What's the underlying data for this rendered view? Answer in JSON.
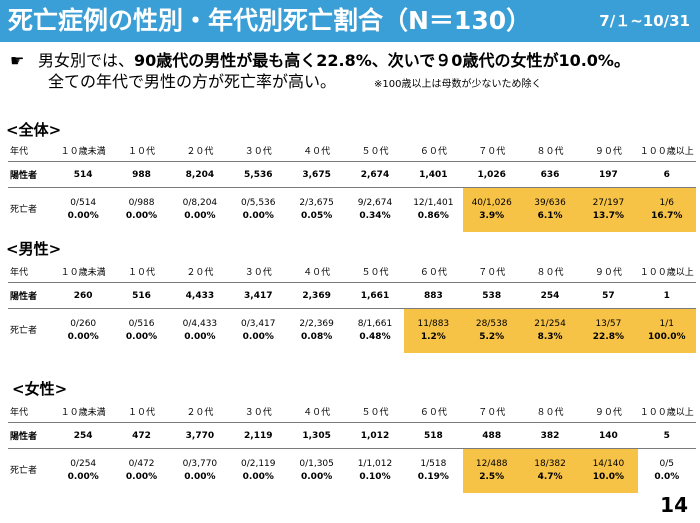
{
  "header": {
    "title": "死亡症例の性別・年代別死亡割合（N＝130）",
    "date_range": "7/１~10/31",
    "bg_color": "#3a9fd6"
  },
  "summary": {
    "bullet": "☛",
    "line1_prefix": "男女別では、",
    "line1_bold": "90歳代の男性が最も高く22.8%、次いで９0歳代の女性が10.0%。",
    "line2": "全ての年代で男性の方が死亡率が高い。",
    "note": "※100歳以上は母数が少ないため除く"
  },
  "highlight_color": "#f7c346",
  "tables": [
    {
      "label": "<全体>",
      "header_label": "年代",
      "ages": [
        "１０歳未満",
        "１０代",
        "２０代",
        "３０代",
        "４０代",
        "５０代",
        "６０代",
        "７０代",
        "８０代",
        "９０代",
        "１００歳以上"
      ],
      "positive_label": "陽性者",
      "positive": [
        "514",
        "988",
        "8,204",
        "5,536",
        "3,675",
        "2,674",
        "1,401",
        "1,026",
        "636",
        "197",
        "6"
      ],
      "death_label": "死亡者",
      "deaths": [
        {
          "frac": "0/514",
          "pct": "0.00%",
          "hl": false
        },
        {
          "frac": "0/988",
          "pct": "0.00%",
          "hl": false
        },
        {
          "frac": "0/8,204",
          "pct": "0.00%",
          "hl": false
        },
        {
          "frac": "0/5,536",
          "pct": "0.00%",
          "hl": false
        },
        {
          "frac": "2/3,675",
          "pct": "0.05%",
          "hl": false
        },
        {
          "frac": "9/2,674",
          "pct": "0.34%",
          "hl": false
        },
        {
          "frac": "12/1,401",
          "pct": "0.86%",
          "hl": false
        },
        {
          "frac": "40/1,026",
          "pct": "3.9%",
          "hl": true
        },
        {
          "frac": "39/636",
          "pct": "6.1%",
          "hl": true
        },
        {
          "frac": "27/197",
          "pct": "13.7%",
          "hl": true
        },
        {
          "frac": "1/6",
          "pct": "16.7%",
          "hl": true
        }
      ]
    },
    {
      "label": "<男性>",
      "header_label": "年代",
      "ages": [
        "１０歳未満",
        "１０代",
        "２０代",
        "３０代",
        "４０代",
        "５０代",
        "６０代",
        "７０代",
        "８０代",
        "９０代",
        "１００歳以上"
      ],
      "positive_label": "陽性者",
      "positive": [
        "260",
        "516",
        "4,433",
        "3,417",
        "2,369",
        "1,661",
        "883",
        "538",
        "254",
        "57",
        "1"
      ],
      "death_label": "死亡者",
      "deaths": [
        {
          "frac": "0/260",
          "pct": "0.00%",
          "hl": false
        },
        {
          "frac": "0/516",
          "pct": "0.00%",
          "hl": false
        },
        {
          "frac": "0/4,433",
          "pct": "0.00%",
          "hl": false
        },
        {
          "frac": "0/3,417",
          "pct": "0.00%",
          "hl": false
        },
        {
          "frac": "2/2,369",
          "pct": "0.08%",
          "hl": false
        },
        {
          "frac": "8/1,661",
          "pct": "0.48%",
          "hl": false
        },
        {
          "frac": "11/883",
          "pct": "1.2%",
          "hl": true
        },
        {
          "frac": "28/538",
          "pct": "5.2%",
          "hl": true
        },
        {
          "frac": "21/254",
          "pct": "8.3%",
          "hl": true
        },
        {
          "frac": "13/57",
          "pct": "22.8%",
          "hl": true
        },
        {
          "frac": "1/1",
          "pct": "100.0%",
          "hl": true
        }
      ]
    },
    {
      "label": "<女性>",
      "header_label": "年代",
      "ages": [
        "１０歳未満",
        "１０代",
        "２０代",
        "３０代",
        "４０代",
        "５０代",
        "６０代",
        "７０代",
        "８０代",
        "９０代",
        "１００歳以上"
      ],
      "positive_label": "陽性者",
      "positive": [
        "254",
        "472",
        "3,770",
        "2,119",
        "1,305",
        "1,012",
        "518",
        "488",
        "382",
        "140",
        "5"
      ],
      "death_label": "死亡者",
      "deaths": [
        {
          "frac": "0/254",
          "pct": "0.00%",
          "hl": false
        },
        {
          "frac": "0/472",
          "pct": "0.00%",
          "hl": false
        },
        {
          "frac": "0/3,770",
          "pct": "0.00%",
          "hl": false
        },
        {
          "frac": "0/2,119",
          "pct": "0.00%",
          "hl": false
        },
        {
          "frac": "0/1,305",
          "pct": "0.00%",
          "hl": false
        },
        {
          "frac": "1/1,012",
          "pct": "0.10%",
          "hl": false
        },
        {
          "frac": "1/518",
          "pct": "0.19%",
          "hl": false
        },
        {
          "frac": "12/488",
          "pct": "2.5%",
          "hl": true
        },
        {
          "frac": "18/382",
          "pct": "4.7%",
          "hl": true
        },
        {
          "frac": "14/140",
          "pct": "10.0%",
          "hl": true
        },
        {
          "frac": "0/5",
          "pct": "0.0%",
          "hl": false
        }
      ]
    }
  ],
  "page_number": "14"
}
